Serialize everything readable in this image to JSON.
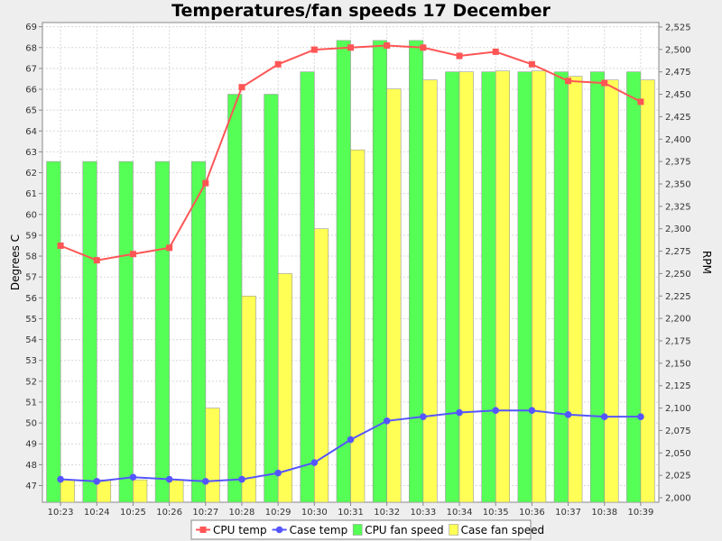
{
  "chart_data": {
    "type": "bar",
    "title": "Temperatures/fan speeds 17 December",
    "xlabel": "",
    "ylabel_left": "Degrees C",
    "ylabel_right": "RPM",
    "categories": [
      "10:23",
      "10:24",
      "10:25",
      "10:26",
      "10:27",
      "10:28",
      "10:29",
      "10:30",
      "10:31",
      "10:32",
      "10:33",
      "10:34",
      "10:35",
      "10:36",
      "10:37",
      "10:38",
      "10:39"
    ],
    "ylim_left": [
      46.2,
      69.2
    ],
    "ylim_right": [
      1995,
      2530
    ],
    "yticks_left": [
      47,
      48,
      49,
      50,
      51,
      52,
      53,
      54,
      55,
      56,
      57,
      58,
      59,
      60,
      61,
      62,
      63,
      64,
      65,
      66,
      67,
      68,
      69
    ],
    "yticks_right": [
      2000,
      2025,
      2050,
      2075,
      2100,
      2125,
      2150,
      2175,
      2200,
      2225,
      2250,
      2275,
      2300,
      2325,
      2350,
      2375,
      2400,
      2425,
      2450,
      2475,
      2500,
      2525
    ],
    "grid": true,
    "legend_position": "bottom",
    "bar_series": [
      {
        "name": "CPU fan speed",
        "axis": "right",
        "color": "#55ff55",
        "values": [
          2375,
          2375,
          2375,
          2375,
          2375,
          2450,
          2450,
          2475,
          2510,
          2510,
          2510,
          2475,
          2475,
          2475,
          2475,
          2475,
          2475
        ]
      },
      {
        "name": "Case fan speed",
        "axis": "right",
        "color": "#ffff55",
        "values": [
          2020,
          2020,
          2020,
          2020,
          2100,
          2225,
          2250,
          2300,
          2388,
          2456,
          2466,
          2475,
          2476,
          2476,
          2470,
          2466,
          2466
        ]
      }
    ],
    "line_series": [
      {
        "name": "CPU temp",
        "axis": "left",
        "color": "#ff5555",
        "marker": "square",
        "values": [
          58.5,
          57.8,
          58.1,
          58.4,
          61.5,
          66.1,
          67.2,
          67.9,
          68.0,
          68.1,
          68.0,
          67.6,
          67.8,
          67.2,
          66.4,
          66.3,
          65.4
        ]
      },
      {
        "name": "Case temp",
        "axis": "left",
        "color": "#5555ff",
        "marker": "circle",
        "values": [
          47.3,
          47.2,
          47.4,
          47.3,
          47.2,
          47.3,
          47.6,
          48.1,
          49.2,
          50.1,
          50.3,
          50.5,
          50.6,
          50.6,
          50.4,
          50.3,
          50.3
        ]
      }
    ],
    "legend": [
      "CPU temp",
      "Case temp",
      "CPU fan speed",
      "Case fan speed"
    ]
  }
}
